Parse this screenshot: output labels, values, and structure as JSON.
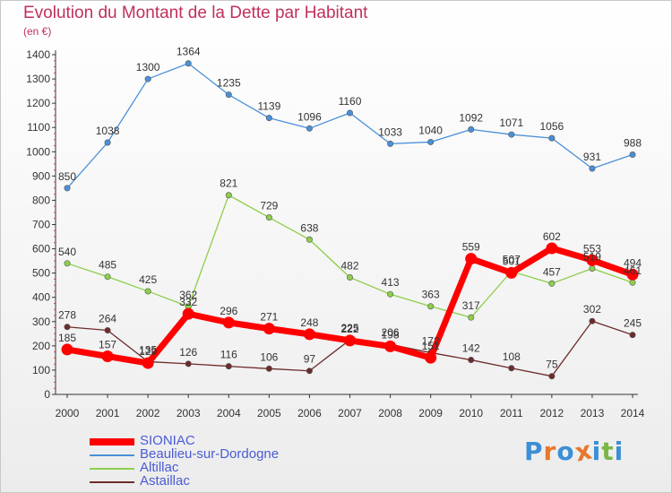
{
  "title": "Evolution du Montant de la Dette par Habitant",
  "unit": "(en €)",
  "chart_data": {
    "type": "line",
    "title": "Evolution du Montant de la Dette par Habitant",
    "subtitle": "(en €)",
    "x": [
      "2000",
      "2001",
      "2002",
      "2003",
      "2004",
      "2005",
      "2006",
      "2007",
      "2008",
      "2009",
      "2010",
      "2011",
      "2012",
      "2013",
      "2014"
    ],
    "ylim": [
      0,
      1400
    ],
    "yticks": [
      0,
      100,
      200,
      300,
      400,
      500,
      600,
      700,
      800,
      900,
      1000,
      1100,
      1200,
      1300,
      1400
    ],
    "grid": false,
    "legend_position": "bottom-left",
    "series": [
      {
        "name": "SIONIAC",
        "color": "#ff0000",
        "values": [
          185,
          157,
          129,
          332,
          296,
          271,
          248,
          222,
          198,
          151,
          559,
          501,
          602,
          553,
          494
        ]
      },
      {
        "name": "Beaulieu-sur-Dordogne",
        "color": "#4a90d9",
        "values": [
          850,
          1038,
          1300,
          1364,
          1235,
          1139,
          1096,
          1160,
          1033,
          1040,
          1092,
          1071,
          1056,
          931,
          988
        ]
      },
      {
        "name": "Altillac",
        "color": "#8ccf4a",
        "values": [
          540,
          485,
          425,
          362,
          821,
          729,
          638,
          482,
          413,
          363,
          317,
          507,
          457,
          519,
          461
        ]
      },
      {
        "name": "Astaillac",
        "color": "#6e2b2b",
        "values": [
          278,
          264,
          135,
          126,
          116,
          106,
          97,
          225,
          206,
          172,
          142,
          108,
          75,
          302,
          245
        ]
      }
    ]
  },
  "logo": {
    "letters": [
      "P",
      "r",
      "o",
      "x",
      "i",
      "t",
      "i"
    ],
    "colors": [
      "#3b8fd6",
      "#e8772e",
      "#3b8fd6",
      "#e8772e",
      "#3b8fd6",
      "#7ab648",
      "#3b8fd6"
    ]
  }
}
